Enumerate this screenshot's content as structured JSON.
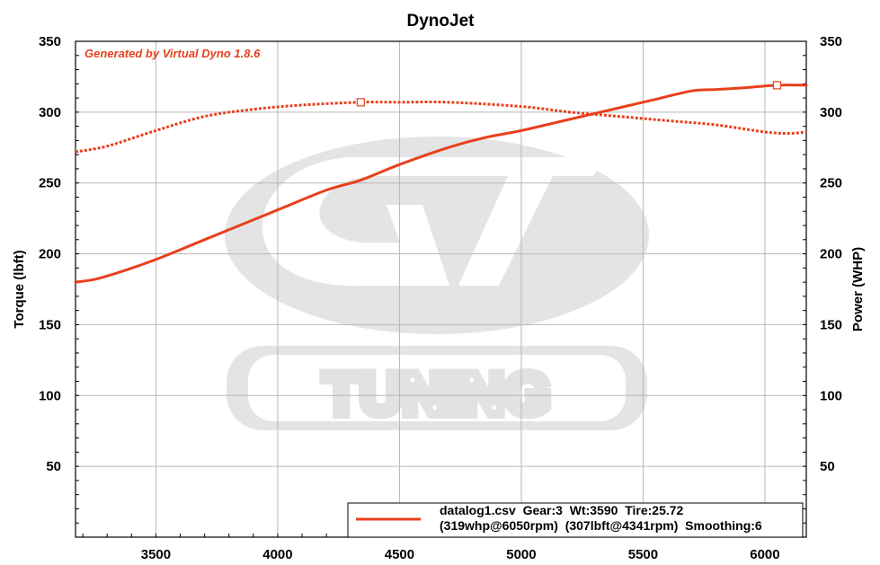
{
  "colors": {
    "series": "#e8401c",
    "grid": "#b8b8b8",
    "watermark": "#e4e4e4"
  },
  "watermark": {
    "logo_text": "TUNING"
  },
  "chart_data": {
    "type": "line",
    "title": "DynoJet",
    "note": "Generated by Virtual Dyno 1.8.6",
    "xlim": [
      3170,
      6170
    ],
    "ylim": [
      0,
      350
    ],
    "y2lim": [
      0,
      350
    ],
    "x_ticks": [
      "3500",
      "4000",
      "4500",
      "5000",
      "5500",
      "6000"
    ],
    "y_ticks": [
      "50",
      "100",
      "150",
      "200",
      "250",
      "300",
      "350"
    ],
    "y2_ticks": [
      "50",
      "100",
      "150",
      "200",
      "250",
      "300",
      "350"
    ],
    "ylabel": "Torque (lbft)",
    "y2label": "Power (WHP)",
    "grid": true,
    "series": [
      {
        "kind": "power",
        "style": "solid",
        "x": [
          3170,
          3250,
          3350,
          3500,
          3700,
          4000,
          4200,
          4341,
          4500,
          4700,
          4850,
          5000,
          5200,
          5400,
          5550,
          5700,
          5800,
          5900,
          6050,
          6170
        ],
        "y": [
          180,
          182,
          187,
          196,
          210,
          231,
          245,
          252,
          263,
          275,
          282,
          287,
          295,
          303,
          309,
          315,
          316,
          317,
          319,
          319
        ],
        "peak": {
          "x": 6050,
          "y": 319
        }
      },
      {
        "kind": "torque",
        "style": "dotted",
        "x": [
          3170,
          3300,
          3500,
          3700,
          3900,
          4100,
          4341,
          4500,
          4700,
          5000,
          5200,
          5400,
          5600,
          5800,
          6000,
          6100,
          6170
        ],
        "y": [
          272,
          276,
          287,
          297,
          302,
          305,
          307,
          307,
          307,
          304,
          300,
          297,
          294,
          291,
          286,
          285,
          286
        ],
        "peak": {
          "x": 4341,
          "y": 307
        }
      }
    ],
    "legend": {
      "position": "bottom-right",
      "line1": "datalog1.csv  Gear:3  Wt:3590  Tire:25.72",
      "line2": "(319whp@6050rpm)  (307lbft@4341rpm)  Smoothing:6"
    }
  }
}
